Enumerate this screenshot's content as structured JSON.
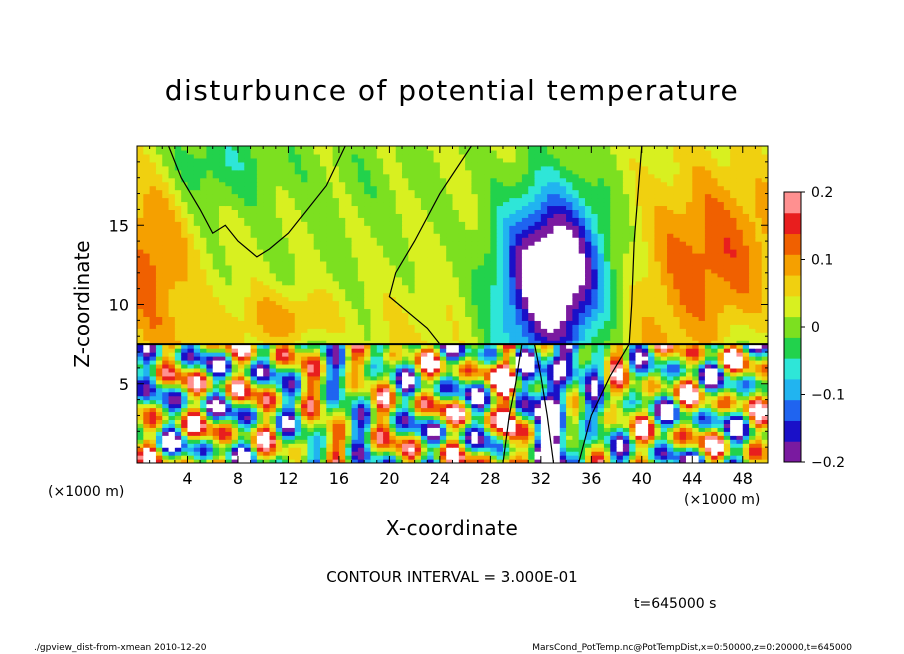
{
  "chart_data": {
    "type": "heatmap",
    "title": "disturbunce of potential temperature",
    "xlabel": "X-coordinate",
    "ylabel": "Z-coordinate",
    "x_unit_left": "(×1000 m)",
    "x_unit_right": "(×1000 m)",
    "xlim": [
      0,
      50
    ],
    "ylim": [
      0,
      20
    ],
    "x_ticks": [
      4,
      8,
      12,
      16,
      20,
      24,
      28,
      32,
      36,
      40,
      44,
      48
    ],
    "x_tick_labels": [
      "4",
      "8",
      "12",
      "16",
      "20",
      "24",
      "28",
      "32",
      "36",
      "40",
      "44",
      "48"
    ],
    "y_ticks": [
      5,
      10,
      15
    ],
    "y_tick_labels": [
      "5",
      "10",
      "15"
    ],
    "colorbar": {
      "range": [
        -0.2,
        0.2
      ],
      "ticks": [
        0.2,
        0.1,
        0,
        -0.1,
        -0.2
      ],
      "tick_labels": [
        "0.2",
        "0.1",
        "0",
        "−0.1",
        "−0.2"
      ],
      "stops": [
        "#7a1aa0",
        "#1a10c8",
        "#1f64f0",
        "#21b4f0",
        "#2ee6d8",
        "#22d24c",
        "#7ce020",
        "#d8f020",
        "#f0d010",
        "#f5a000",
        "#f06000",
        "#e81e1e",
        "#ff9090"
      ]
    },
    "contour_interval_text": "CONTOUR INTERVAL = 3.000E-01",
    "time_text": "t=645000 s",
    "interface_height": 7.5,
    "field_features": [
      {
        "x": 33,
        "z": 12,
        "sx": 4,
        "sz": 5,
        "value": -0.3
      },
      {
        "x": 6,
        "z": 19,
        "sx": 5,
        "sz": 3,
        "value": -0.06
      },
      {
        "x": 46,
        "z": 13,
        "sx": 6,
        "sz": 6,
        "value": 0.11
      },
      {
        "x": 1,
        "z": 13,
        "sx": 3,
        "sz": 6,
        "value": 0.1
      },
      {
        "x": 12,
        "z": 9,
        "sx": 4,
        "sz": 2,
        "value": 0.09
      },
      {
        "x": 18,
        "z": 18,
        "sx": 6,
        "sz": 4,
        "value": -0.02
      }
    ]
  },
  "footer": {
    "left": "./gpview_dist-from-xmean  2010-12-20",
    "right": "MarsCond_PotTemp.nc@PotTempDist,x=0:50000,z=0:20000,t=645000"
  }
}
